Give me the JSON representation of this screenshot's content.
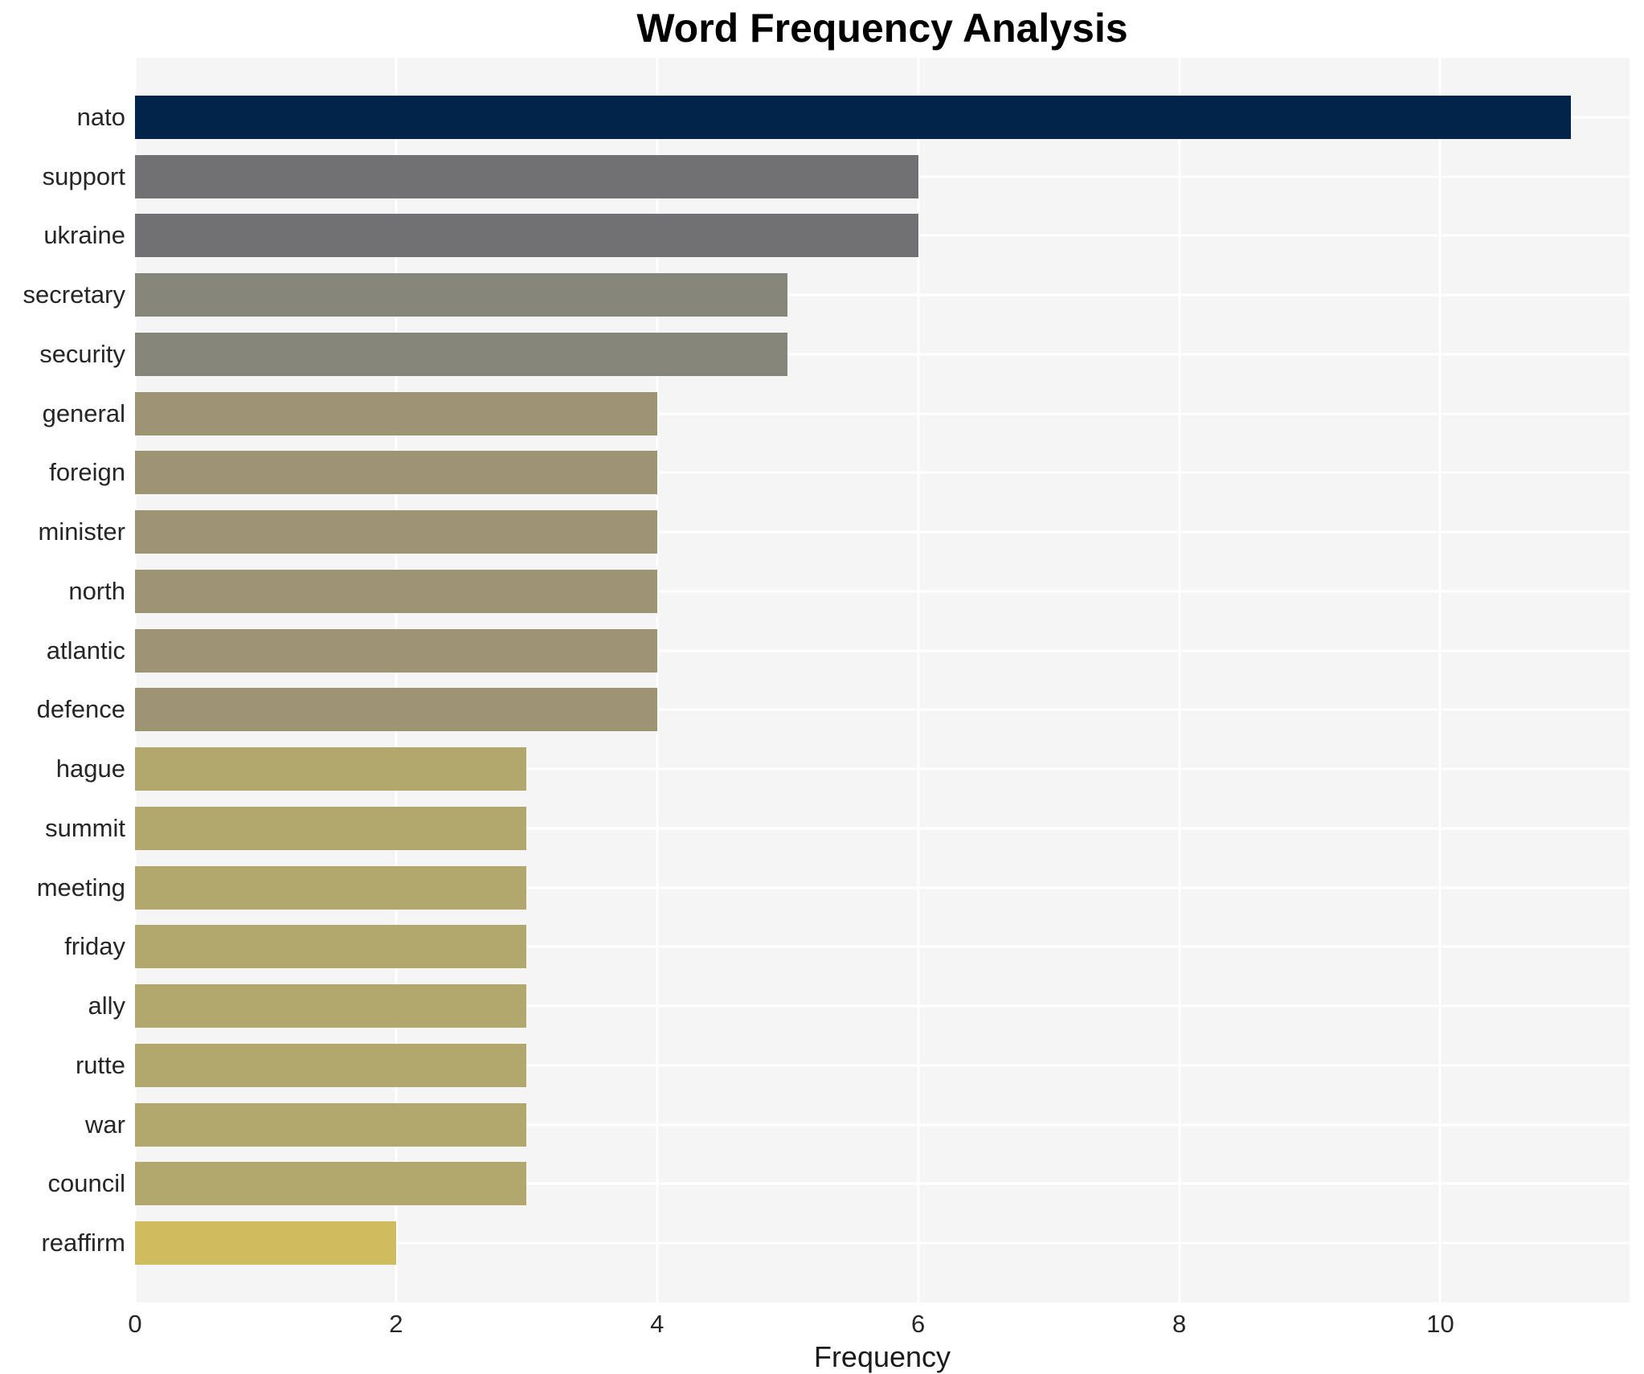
{
  "chart_data": {
    "type": "bar",
    "orientation": "horizontal",
    "title": "Word Frequency Analysis",
    "xlabel": "Frequency",
    "ylabel": "",
    "categories": [
      "nato",
      "support",
      "ukraine",
      "secretary",
      "security",
      "general",
      "foreign",
      "minister",
      "north",
      "atlantic",
      "defence",
      "hague",
      "summit",
      "meeting",
      "friday",
      "ally",
      "rutte",
      "war",
      "council",
      "reaffirm"
    ],
    "values": [
      11,
      6,
      6,
      5,
      5,
      4,
      4,
      4,
      4,
      4,
      4,
      3,
      3,
      3,
      3,
      3,
      3,
      3,
      3,
      2
    ],
    "bar_colors": [
      "#02234a",
      "#717174",
      "#717174",
      "#85857a",
      "#85857a",
      "#9c9472",
      "#9c9472",
      "#9c9472",
      "#9c9472",
      "#9c9472",
      "#9c9472",
      "#b2a76c",
      "#b2a76c",
      "#b2a76c",
      "#b2a76c",
      "#b2a76c",
      "#b2a76c",
      "#b2a76c",
      "#b2a76c",
      "#cfbc5e"
    ],
    "xticks": [
      0,
      2,
      4,
      6,
      8,
      10
    ],
    "xlim": [
      0,
      11.45
    ],
    "grid": true,
    "legend_position": "none",
    "panel_background": "#f5f5f6",
    "gridline_color": "#ffffff",
    "figure_background": "#ffffff"
  }
}
